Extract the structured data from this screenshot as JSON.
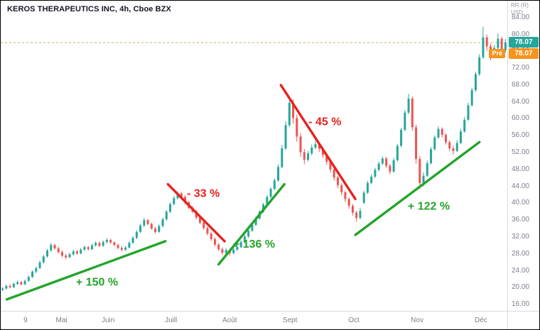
{
  "window": {
    "legend_title": "KEROS THERAPEUTICS INC, 4h, Cboe BZX"
  },
  "price_axis": {
    "corner_line1": "RR (R)",
    "corner_line2": "USD",
    "current_badge": "78.07",
    "pre_label": "Pré",
    "pre_badge": "78.07",
    "current_badge_color": "#26a69a",
    "pre_badge_color": "#f7941d"
  },
  "chart_data": {
    "type": "candlestick",
    "symbol": "KEROS THERAPEUTICS INC",
    "interval": "4h",
    "exchange": "Cboe BZX",
    "currency": "USD",
    "last_price": 78.07,
    "pre_market_price": 78.07,
    "ylim": [
      14.5,
      88
    ],
    "price_ticks": [
      84,
      80,
      76,
      72,
      68,
      64,
      60,
      56,
      52,
      48,
      44,
      40,
      36,
      32,
      28,
      24,
      20,
      16
    ],
    "x_labels": [
      {
        "text": "9",
        "pos": 0.049
      },
      {
        "text": "Mai",
        "pos": 0.12
      },
      {
        "text": "Juin",
        "pos": 0.212
      },
      {
        "text": "Juill",
        "pos": 0.336
      },
      {
        "text": "Août",
        "pos": 0.452
      },
      {
        "text": "Sept",
        "pos": 0.571
      },
      {
        "text": "Oct",
        "pos": 0.697
      },
      {
        "text": "Nov",
        "pos": 0.822
      },
      {
        "text": "Déc",
        "pos": 0.948
      }
    ],
    "colors": {
      "up": "#26a69a",
      "down": "#ef5350",
      "trend_up": "#23a42a",
      "trend_down": "#e5231f",
      "price_line": "#bfae6f"
    },
    "annotations": {
      "price_line": 78.07,
      "trend_lines": [
        {
          "dir": "up",
          "label": "+ 150 %",
          "x1": 0.012,
          "p1": 17.2,
          "x2": 0.325,
          "p2": 31.0,
          "label_x": 0.19,
          "label_p": 20.5
        },
        {
          "dir": "down",
          "label": "- 33 %",
          "x1": 0.33,
          "p1": 44.5,
          "x2": 0.442,
          "p2": 31.0,
          "label_x": 0.4,
          "label_p": 41.5
        },
        {
          "dir": "up",
          "label": "+ 136 %",
          "x1": 0.43,
          "p1": 25.5,
          "x2": 0.56,
          "p2": 44.5,
          "label_x": 0.5,
          "label_p": 29.5
        },
        {
          "dir": "down",
          "label": "- 45 %",
          "x1": 0.553,
          "p1": 68.0,
          "x2": 0.7,
          "p2": 41.0,
          "label_x": 0.64,
          "label_p": 58.5
        },
        {
          "dir": "up",
          "label": "+ 122 %",
          "x1": 0.7,
          "p1": 32.5,
          "x2": 0.945,
          "p2": 54.5,
          "label_x": 0.845,
          "label_p": 38.5
        }
      ]
    },
    "candles": [
      [
        19.5,
        20.1,
        19.2,
        19.8
      ],
      [
        19.8,
        20.7,
        19.5,
        20.4
      ],
      [
        20.4,
        20.8,
        19.8,
        20.1
      ],
      [
        20.1,
        21.2,
        19.9,
        20.9
      ],
      [
        20.9,
        21.7,
        20.6,
        21.3
      ],
      [
        21.3,
        21.6,
        20.5,
        20.8
      ],
      [
        20.8,
        21.9,
        20.6,
        21.6
      ],
      [
        21.6,
        22.9,
        21.4,
        22.5
      ],
      [
        22.5,
        24.1,
        22.3,
        23.8
      ],
      [
        23.8,
        25.0,
        23.4,
        24.6
      ],
      [
        24.6,
        26.4,
        24.4,
        26.0
      ],
      [
        26.0,
        27.8,
        25.7,
        27.4
      ],
      [
        27.4,
        29.2,
        27.1,
        28.8
      ],
      [
        28.8,
        30.6,
        28.5,
        30.1
      ],
      [
        30.1,
        30.4,
        29.0,
        29.3
      ],
      [
        29.3,
        29.7,
        28.1,
        28.4
      ],
      [
        28.4,
        28.8,
        27.2,
        27.6
      ],
      [
        27.6,
        28.0,
        26.7,
        27.2
      ],
      [
        27.2,
        28.3,
        27.0,
        27.9
      ],
      [
        27.9,
        29.0,
        27.6,
        28.6
      ],
      [
        28.6,
        28.9,
        27.8,
        28.1
      ],
      [
        28.1,
        29.4,
        27.9,
        29.0
      ],
      [
        29.0,
        30.0,
        28.7,
        29.6
      ],
      [
        29.6,
        29.9,
        28.8,
        29.1
      ],
      [
        29.1,
        30.4,
        28.9,
        30.0
      ],
      [
        30.0,
        31.0,
        29.7,
        30.6
      ],
      [
        30.6,
        30.9,
        29.6,
        29.9
      ],
      [
        29.9,
        31.2,
        29.7,
        30.8
      ],
      [
        30.8,
        31.7,
        30.5,
        31.3
      ],
      [
        31.3,
        31.6,
        30.4,
        30.7
      ],
      [
        30.7,
        31.0,
        29.8,
        30.1
      ],
      [
        30.1,
        30.4,
        29.1,
        29.4
      ],
      [
        29.4,
        29.8,
        28.6,
        29.0
      ],
      [
        29.0,
        29.9,
        28.7,
        29.5
      ],
      [
        29.5,
        31.0,
        29.3,
        30.6
      ],
      [
        30.6,
        32.2,
        30.4,
        31.8
      ],
      [
        31.8,
        33.6,
        31.5,
        33.2
      ],
      [
        33.2,
        35.1,
        33.0,
        34.7
      ],
      [
        34.7,
        36.5,
        34.4,
        36.0
      ],
      [
        36.0,
        36.3,
        34.8,
        35.1
      ],
      [
        35.1,
        35.4,
        33.7,
        34.0
      ],
      [
        34.0,
        34.4,
        32.8,
        33.2
      ],
      [
        33.2,
        35.0,
        33.0,
        34.6
      ],
      [
        34.6,
        36.6,
        34.3,
        36.2
      ],
      [
        36.2,
        38.4,
        35.9,
        38.0
      ],
      [
        38.0,
        40.2,
        37.7,
        39.8
      ],
      [
        39.8,
        41.7,
        39.5,
        41.2
      ],
      [
        41.2,
        42.8,
        40.9,
        42.3
      ],
      [
        42.3,
        42.7,
        41.1,
        41.5
      ],
      [
        41.5,
        41.9,
        39.8,
        40.2
      ],
      [
        40.2,
        40.6,
        38.5,
        38.9
      ],
      [
        38.9,
        39.3,
        37.6,
        38.0
      ],
      [
        38.0,
        38.4,
        36.2,
        36.6
      ],
      [
        36.6,
        37.0,
        35.0,
        35.4
      ],
      [
        35.4,
        35.8,
        33.7,
        34.1
      ],
      [
        34.1,
        34.5,
        32.4,
        32.8
      ],
      [
        32.8,
        33.2,
        31.1,
        31.5
      ],
      [
        31.5,
        31.9,
        29.8,
        30.2
      ],
      [
        30.2,
        30.6,
        28.7,
        29.1
      ],
      [
        29.1,
        29.5,
        27.8,
        28.3
      ],
      [
        28.3,
        29.3,
        28.0,
        28.9
      ],
      [
        28.9,
        29.2,
        27.6,
        28.2
      ],
      [
        28.2,
        29.4,
        27.9,
        29.0
      ],
      [
        29.0,
        30.0,
        28.7,
        29.6
      ],
      [
        29.6,
        31.2,
        29.4,
        30.8
      ],
      [
        30.8,
        32.5,
        30.5,
        32.1
      ],
      [
        32.1,
        33.9,
        31.8,
        33.5
      ],
      [
        33.5,
        35.3,
        33.2,
        34.9
      ],
      [
        34.9,
        36.8,
        34.6,
        36.4
      ],
      [
        36.4,
        38.4,
        36.1,
        38.0
      ],
      [
        38.0,
        40.1,
        37.7,
        39.7
      ],
      [
        39.7,
        41.9,
        39.4,
        41.5
      ],
      [
        41.5,
        43.8,
        41.2,
        43.4
      ],
      [
        43.4,
        45.9,
        43.1,
        45.4
      ],
      [
        45.4,
        49.2,
        45.1,
        48.6
      ],
      [
        48.6,
        53.8,
        48.3,
        53.0
      ],
      [
        53.0,
        59.4,
        52.6,
        58.5
      ],
      [
        58.5,
        65.4,
        58.1,
        63.8
      ],
      [
        63.8,
        64.6,
        58.9,
        60.2
      ],
      [
        60.2,
        61.0,
        54.6,
        55.8
      ],
      [
        55.8,
        56.6,
        51.0,
        52.1
      ],
      [
        52.1,
        52.9,
        49.2,
        50.3
      ],
      [
        50.3,
        52.4,
        49.9,
        51.8
      ],
      [
        51.8,
        53.9,
        51.4,
        53.2
      ],
      [
        53.2,
        54.8,
        52.8,
        54.0
      ],
      [
        54.0,
        54.5,
        52.2,
        52.9
      ],
      [
        52.9,
        53.3,
        50.8,
        51.5
      ],
      [
        51.5,
        51.9,
        49.1,
        49.8
      ],
      [
        49.8,
        50.2,
        47.3,
        48.0
      ],
      [
        48.0,
        48.4,
        45.4,
        46.1
      ],
      [
        46.1,
        46.5,
        43.6,
        44.3
      ],
      [
        44.3,
        44.7,
        41.9,
        42.6
      ],
      [
        42.6,
        43.0,
        40.3,
        41.0
      ],
      [
        41.0,
        41.4,
        38.7,
        39.4
      ],
      [
        39.4,
        39.8,
        37.1,
        37.8
      ],
      [
        37.8,
        38.2,
        35.6,
        36.5
      ],
      [
        36.5,
        38.9,
        36.2,
        38.2
      ],
      [
        40.1,
        43.0,
        39.8,
        42.5
      ],
      [
        42.5,
        45.3,
        42.2,
        44.8
      ],
      [
        44.8,
        46.8,
        44.5,
        46.3
      ],
      [
        46.3,
        48.4,
        46.0,
        47.9
      ],
      [
        47.9,
        49.9,
        47.6,
        49.4
      ],
      [
        49.4,
        51.1,
        49.1,
        50.6
      ],
      [
        50.6,
        51.0,
        48.4,
        48.9
      ],
      [
        48.9,
        49.3,
        46.9,
        47.5
      ],
      [
        47.5,
        50.7,
        47.2,
        50.2
      ],
      [
        50.2,
        54.1,
        49.9,
        53.6
      ],
      [
        53.6,
        57.9,
        53.3,
        57.4
      ],
      [
        57.4,
        62.1,
        57.1,
        61.5
      ],
      [
        61.5,
        65.9,
        61.1,
        64.8
      ],
      [
        64.8,
        65.3,
        57.2,
        58.0
      ],
      [
        58.0,
        58.6,
        49.4,
        50.5
      ],
      [
        50.5,
        51.2,
        43.4,
        44.8
      ],
      [
        44.8,
        47.3,
        44.0,
        46.5
      ],
      [
        46.5,
        50.1,
        46.2,
        49.5
      ],
      [
        49.5,
        53.3,
        49.2,
        52.8
      ],
      [
        52.8,
        56.1,
        52.5,
        55.6
      ],
      [
        55.6,
        58.2,
        55.3,
        57.6
      ],
      [
        57.6,
        58.0,
        55.6,
        56.2
      ],
      [
        56.2,
        56.6,
        53.9,
        54.5
      ],
      [
        54.5,
        54.9,
        52.4,
        53.0
      ],
      [
        53.0,
        53.6,
        51.5,
        52.4
      ],
      [
        52.4,
        54.9,
        52.1,
        54.3
      ],
      [
        54.3,
        57.6,
        54.0,
        57.0
      ],
      [
        57.0,
        60.4,
        56.7,
        59.8
      ],
      [
        59.8,
        63.8,
        59.5,
        63.2
      ],
      [
        63.2,
        67.4,
        62.9,
        66.8
      ],
      [
        66.8,
        71.2,
        66.4,
        70.6
      ],
      [
        70.6,
        75.3,
        70.2,
        74.6
      ],
      [
        74.6,
        81.8,
        74.2,
        79.3
      ],
      [
        79.3,
        80.0,
        76.2,
        77.2
      ],
      [
        77.2,
        77.8,
        73.9,
        74.9
      ],
      [
        74.9,
        77.5,
        74.4,
        76.8
      ],
      [
        76.8,
        80.2,
        76.4,
        79.0
      ],
      [
        79.0,
        79.5,
        75.4,
        76.3
      ],
      [
        76.3,
        78.9,
        75.7,
        78.07
      ]
    ]
  }
}
